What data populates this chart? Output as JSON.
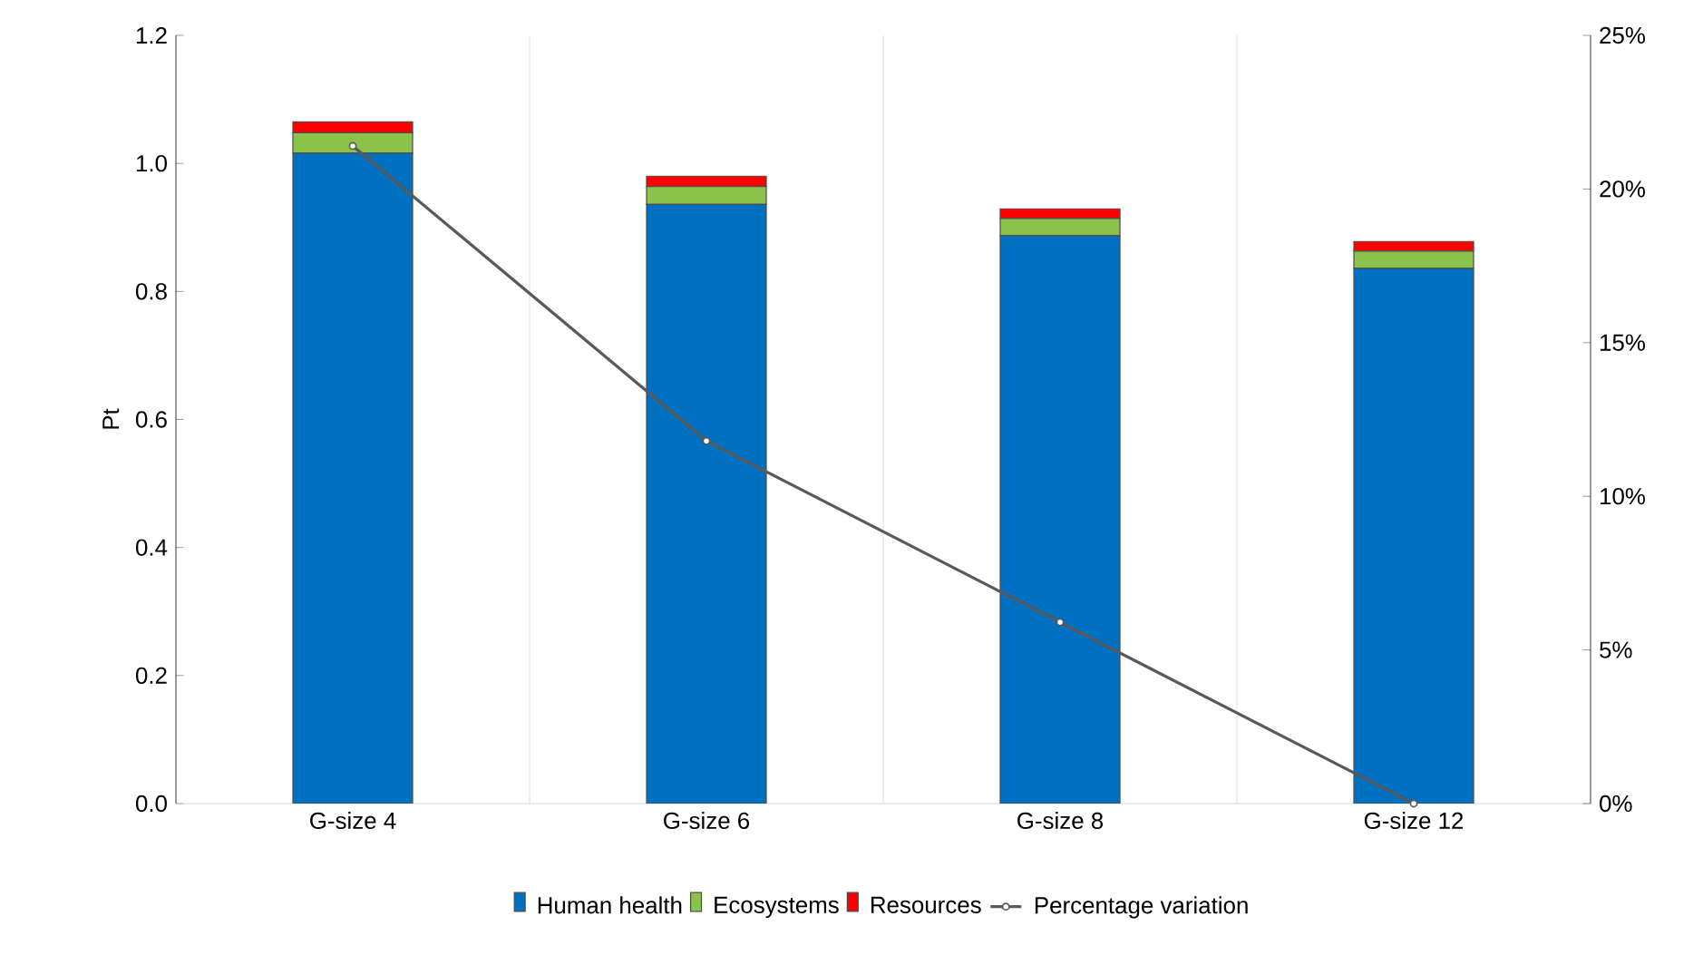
{
  "chart_data": {
    "type": "bar",
    "stacked": true,
    "ylabel": "Pt",
    "categories": [
      "G-size 4",
      "G-size 6",
      "G-size 8",
      "G-size 12"
    ],
    "series": [
      {
        "name": "Human health",
        "color": "#0070c0",
        "values": [
          1.016,
          0.936,
          0.887,
          0.836
        ]
      },
      {
        "name": "Ecosystems",
        "color": "#8bc34a",
        "values": [
          0.032,
          0.028,
          0.027,
          0.027
        ]
      },
      {
        "name": "Resources",
        "color": "#ff0000",
        "values": [
          0.017,
          0.016,
          0.015,
          0.015
        ]
      },
      {
        "name": "Percentage variation",
        "type": "line",
        "axis": "y2",
        "color": "#595959",
        "marker": "circle",
        "values": [
          21.4,
          11.8,
          5.9,
          0
        ]
      }
    ],
    "ylim": [
      0,
      1.2
    ],
    "yticks": [
      {
        "value": 0,
        "label": "0.0"
      },
      0.2,
      0.4,
      0.6,
      0.8,
      {
        "value": 1,
        "label": "1.0"
      },
      1.2
    ],
    "y2lim": [
      0,
      25
    ],
    "y2ticks": [
      {
        "value": 0,
        "label": "0%"
      },
      {
        "value": 5,
        "label": "5%"
      },
      {
        "value": 10,
        "label": "10%"
      },
      {
        "value": 15,
        "label": "15%"
      },
      {
        "value": 20,
        "label": "20%"
      },
      {
        "value": 25,
        "label": "25%"
      }
    ],
    "grid": "x",
    "legend": "bottom"
  }
}
